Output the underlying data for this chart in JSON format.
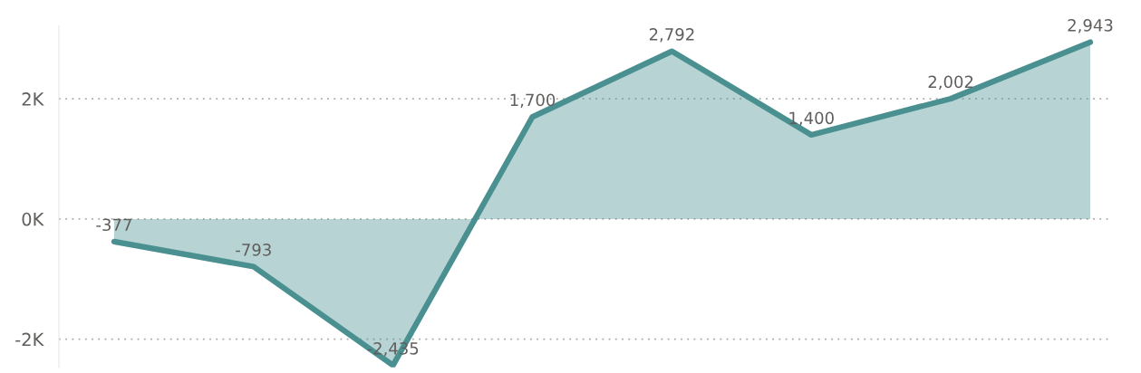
{
  "chart_data": {
    "type": "area",
    "categories": [
      null,
      null,
      null,
      null,
      null,
      null,
      null,
      null
    ],
    "series": [
      {
        "color": "#4a9090",
        "values": [
          -377,
          -793,
          -2435,
          1700,
          2792,
          1400,
          2002,
          2943
        ],
        "value_labels": [
          "-377",
          "-793",
          "-2,435",
          "1,700",
          "2,792",
          "1,400",
          "2,002",
          "2,943"
        ]
      }
    ],
    "ylim": [
      -2470,
      3210
    ],
    "yticks": [
      {
        "value": -2000,
        "label": "-2K"
      },
      {
        "value": 0,
        "label": "0K"
      },
      {
        "value": 2000,
        "label": "2K"
      }
    ],
    "grid": "y",
    "legend": false,
    "marker": "none",
    "line_style": "solid"
  }
}
